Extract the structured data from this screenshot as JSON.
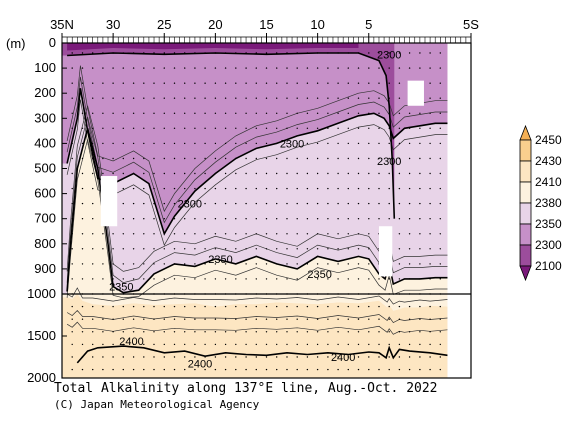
{
  "chart_data": {
    "type": "heatmap",
    "title": "Total Alkalinity along 137°E line, Aug.-Oct. 2022",
    "credit": "(C) Japan Meteorological Agency",
    "xaxis": {
      "range": [
        35,
        -5
      ],
      "ticks": [
        {
          "value": 35,
          "label": "35N"
        },
        {
          "value": 30,
          "label": "30"
        },
        {
          "value": 25,
          "label": "25"
        },
        {
          "value": 20,
          "label": "20"
        },
        {
          "value": 15,
          "label": "15"
        },
        {
          "value": 10,
          "label": "10"
        },
        {
          "value": 5,
          "label": "5"
        },
        {
          "value": -5,
          "label": "5S"
        }
      ]
    },
    "yaxis": {
      "unit": "(m)",
      "upper_range": [
        0,
        1000
      ],
      "lower_range": [
        1000,
        2000
      ],
      "ticks": [
        {
          "value": 0,
          "label": "0"
        },
        {
          "value": 100,
          "label": "100"
        },
        {
          "value": 200,
          "label": "200"
        },
        {
          "value": 300,
          "label": "300"
        },
        {
          "value": 400,
          "label": "400"
        },
        {
          "value": 500,
          "label": "500"
        },
        {
          "value": 600,
          "label": "600"
        },
        {
          "value": 700,
          "label": "700"
        },
        {
          "value": 800,
          "label": "800"
        },
        {
          "value": 900,
          "label": "900"
        },
        {
          "value": 1000,
          "label": "1000"
        },
        {
          "value": 1500,
          "label": "1500"
        },
        {
          "value": 2000,
          "label": "2000"
        }
      ]
    },
    "colorbar": {
      "levels": [
        "2450",
        "2430",
        "2410",
        "2380",
        "2350",
        "2300",
        "2100"
      ],
      "colors": [
        "#f5b054",
        "#f9cf8e",
        "#fde6c2",
        "#fdf2df",
        "#e8d4e8",
        "#c690c8",
        "#9c4d9c",
        "#7a1a7a"
      ]
    },
    "contour_labels": [
      {
        "text": "2300",
        "lat": 3.0,
        "depth": 45
      },
      {
        "text": "2300",
        "lat": 12.5,
        "depth": 400
      },
      {
        "text": "2300",
        "lat": 3.0,
        "depth": 470
      },
      {
        "text": "2300",
        "lat": 22.5,
        "depth": 640
      },
      {
        "text": "2350",
        "lat": 19.5,
        "depth": 860
      },
      {
        "text": "2350",
        "lat": 9.8,
        "depth": 920
      },
      {
        "text": "2350",
        "lat": 29.2,
        "depth": 970
      },
      {
        "text": "2400",
        "lat": 28.2,
        "depth": 1560
      },
      {
        "text": "2400",
        "lat": 21.5,
        "depth": 1830
      },
      {
        "text": "2400",
        "lat": 7.5,
        "depth": 1750
      }
    ],
    "region_boundaries": [
      {
        "level": 2300,
        "points": [
          [
            34.5,
            480
          ],
          [
            33.5,
            300
          ],
          [
            33.2,
            180
          ],
          [
            32.5,
            350
          ],
          [
            31.5,
            540
          ],
          [
            30,
            560
          ],
          [
            28,
            520
          ],
          [
            26.5,
            560
          ],
          [
            25,
            760
          ],
          [
            24,
            690
          ],
          [
            22,
            590
          ],
          [
            20,
            520
          ],
          [
            18,
            460
          ],
          [
            16,
            420
          ],
          [
            14,
            400
          ],
          [
            12,
            370
          ],
          [
            10,
            350
          ],
          [
            8,
            320
          ],
          [
            6,
            290
          ],
          [
            4.5,
            280
          ],
          [
            3.5,
            300
          ],
          [
            3,
            330
          ],
          [
            2.6,
            380
          ],
          [
            1.5,
            340
          ],
          [
            0,
            330
          ],
          [
            -1.5,
            320
          ],
          [
            -2.7,
            320
          ]
        ]
      },
      {
        "level": 2350,
        "points": [
          [
            34.5,
            1000
          ],
          [
            34.2,
            820
          ],
          [
            33.5,
            500
          ],
          [
            32.5,
            340
          ],
          [
            31.5,
            500
          ],
          [
            30.5,
            800
          ],
          [
            30,
            970
          ],
          [
            29,
            1000
          ],
          [
            27.5,
            985
          ],
          [
            26,
            920
          ],
          [
            24,
            880
          ],
          [
            22,
            890
          ],
          [
            20,
            860
          ],
          [
            18,
            880
          ],
          [
            16,
            850
          ],
          [
            14,
            880
          ],
          [
            12,
            900
          ],
          [
            10,
            850
          ],
          [
            8,
            870
          ],
          [
            6,
            850
          ],
          [
            5,
            860
          ],
          [
            4,
            920
          ],
          [
            3.4,
            940
          ],
          [
            3,
            880
          ],
          [
            2.6,
            960
          ],
          [
            1.5,
            940
          ],
          [
            0,
            940
          ],
          [
            -1.5,
            935
          ],
          [
            -2.7,
            935
          ]
        ]
      },
      {
        "level": 2380,
        "points": [
          [
            34.5,
            1000
          ],
          [
            33,
            1000
          ],
          [
            30,
            1000
          ],
          [
            20,
            1000
          ],
          [
            10,
            1000
          ],
          [
            0,
            1000
          ],
          [
            -2.7,
            1000
          ]
        ]
      },
      {
        "level": 2410,
        "points": [
          [
            34.5,
            1040
          ],
          [
            34,
            1060
          ],
          [
            33.5,
            1000
          ],
          [
            33,
            1080
          ],
          [
            32,
            1120
          ],
          [
            30,
            1140
          ],
          [
            28,
            1110
          ],
          [
            26,
            1130
          ],
          [
            24,
            1120
          ],
          [
            22,
            1110
          ],
          [
            20,
            1150
          ],
          [
            18,
            1120
          ],
          [
            16,
            1120
          ],
          [
            14,
            1100
          ],
          [
            12,
            1110
          ],
          [
            10,
            1120
          ],
          [
            8,
            1100
          ],
          [
            6,
            1110
          ],
          [
            4,
            1080
          ],
          [
            3.2,
            1160
          ],
          [
            3,
            1130
          ],
          [
            2.6,
            1200
          ],
          [
            2,
            1180
          ],
          [
            1.5,
            1160
          ],
          [
            0,
            1160
          ],
          [
            -1,
            1140
          ],
          [
            -2.7,
            1150
          ]
        ]
      }
    ],
    "black_lines": [
      {
        "level": 2300,
        "points": [
          [
            34.5,
            480
          ],
          [
            33.5,
            300
          ],
          [
            33.2,
            180
          ],
          [
            32.5,
            350
          ],
          [
            31.5,
            540
          ],
          [
            30,
            560
          ],
          [
            28,
            520
          ],
          [
            26.5,
            560
          ],
          [
            25,
            760
          ],
          [
            24,
            690
          ],
          [
            22,
            590
          ],
          [
            20,
            520
          ],
          [
            18,
            460
          ],
          [
            16,
            420
          ],
          [
            14,
            400
          ],
          [
            12,
            370
          ],
          [
            10,
            350
          ],
          [
            8,
            320
          ],
          [
            6,
            290
          ],
          [
            4.5,
            280
          ],
          [
            3.5,
            300
          ],
          [
            3,
            330
          ],
          [
            2.6,
            380
          ],
          [
            1.5,
            340
          ],
          [
            0,
            330
          ],
          [
            -1.5,
            320
          ],
          [
            -2.7,
            320
          ]
        ]
      },
      {
        "level": 2350,
        "points": [
          [
            34.5,
            990
          ],
          [
            34.2,
            820
          ],
          [
            33.5,
            500
          ],
          [
            32.5,
            340
          ],
          [
            31.5,
            500
          ],
          [
            30.5,
            800
          ],
          [
            30,
            970
          ],
          [
            29,
            995
          ],
          [
            27.5,
            985
          ],
          [
            26,
            920
          ],
          [
            24,
            880
          ],
          [
            22,
            890
          ],
          [
            20,
            860
          ],
          [
            18,
            880
          ],
          [
            16,
            850
          ],
          [
            14,
            880
          ],
          [
            12,
            900
          ],
          [
            10,
            850
          ],
          [
            8,
            870
          ],
          [
            6,
            850
          ],
          [
            5,
            860
          ],
          [
            4,
            920
          ],
          [
            3.4,
            940
          ],
          [
            3,
            880
          ],
          [
            2.6,
            960
          ],
          [
            1.5,
            940
          ],
          [
            0,
            940
          ],
          [
            -1.5,
            935
          ],
          [
            -2.7,
            935
          ]
        ]
      },
      {
        "level": 2400,
        "points": [
          [
            33.5,
            1820
          ],
          [
            32.5,
            1680
          ],
          [
            31.5,
            1640
          ],
          [
            29,
            1620
          ],
          [
            27,
            1640
          ],
          [
            25,
            1700
          ],
          [
            23,
            1680
          ],
          [
            21,
            1740
          ],
          [
            19,
            1700
          ],
          [
            17,
            1720
          ],
          [
            15,
            1730
          ],
          [
            13,
            1700
          ],
          [
            11,
            1720
          ],
          [
            9,
            1700
          ],
          [
            7,
            1720
          ],
          [
            5,
            1690
          ],
          [
            4,
            1700
          ],
          [
            3.3,
            1760
          ],
          [
            3,
            1640
          ],
          [
            2.6,
            1760
          ],
          [
            2,
            1660
          ],
          [
            1,
            1680
          ],
          [
            -1,
            1700
          ],
          [
            -2.7,
            1730
          ]
        ]
      },
      {
        "level": 2300,
        "points": [
          [
            34.5,
            50
          ],
          [
            30,
            40
          ],
          [
            25,
            45
          ],
          [
            20,
            40
          ],
          [
            15,
            45
          ],
          [
            10,
            40
          ],
          [
            6,
            40
          ],
          [
            4,
            70
          ],
          [
            3.3,
            130
          ],
          [
            3,
            250
          ],
          [
            2.7,
            470
          ],
          [
            2.5,
            700
          ]
        ]
      }
    ],
    "gaps": [
      {
        "lat_from": 31.2,
        "lat_to": 29.6,
        "depth_from": 530,
        "depth_to": 730
      },
      {
        "lat_from": 4.0,
        "lat_to": 2.7,
        "depth_from": 730,
        "depth_to": 930
      },
      {
        "lat_from": 1.2,
        "lat_to": -0.4,
        "depth_from": 150,
        "depth_to": 250
      }
    ]
  }
}
